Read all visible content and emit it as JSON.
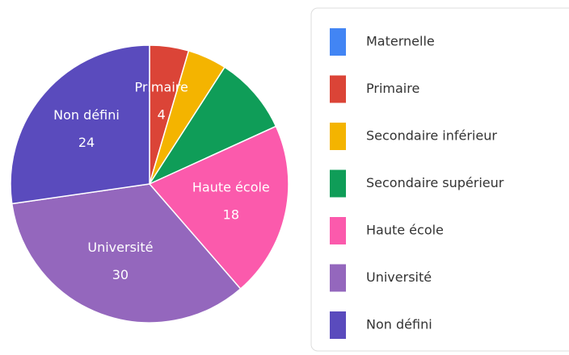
{
  "chart_data": {
    "type": "pie",
    "categories": [
      "Maternelle",
      "Primaire",
      "Secondaire inférieur",
      "Secondaire supérieur",
      "Haute école",
      "Université",
      "Non défini"
    ],
    "values": [
      0,
      4,
      4,
      8,
      18,
      30,
      24
    ],
    "value_labels": [
      null,
      "4",
      null,
      null,
      "18",
      "30",
      "24"
    ],
    "colors": [
      "#4285f4",
      "#db4437",
      "#f4b400",
      "#0f9d58",
      "#fb5aac",
      "#9467bd",
      "#5a4bbd"
    ],
    "legend": "right"
  }
}
